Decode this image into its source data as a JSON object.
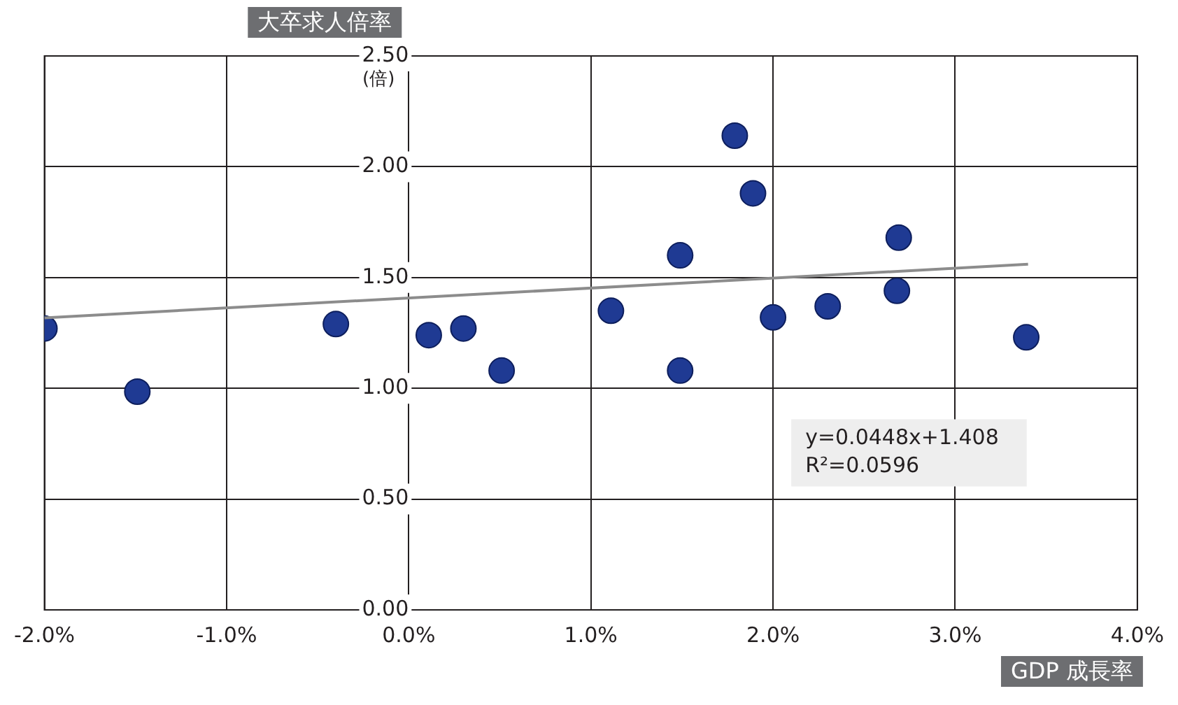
{
  "chart_data": {
    "type": "scatter",
    "xlabel": "GDP 成長率",
    "ylabel": "大卒求人倍率",
    "annotations": [
      "(倍)",
      "y=0.0448x+1.408",
      "R²=0.0596"
    ],
    "x": [
      -2.0,
      -1.49,
      -0.4,
      0.11,
      0.3,
      0.51,
      1.11,
      1.49,
      1.49,
      1.79,
      1.89,
      2.0,
      2.3,
      2.69,
      2.68,
      3.39
    ],
    "series": [
      {
        "color": "#1f3a93",
        "values": [
          1.27,
          0.985,
          1.29,
          1.24,
          1.27,
          1.08,
          1.35,
          1.6,
          1.08,
          2.14,
          1.88,
          1.32,
          1.37,
          1.68,
          1.44,
          1.23
        ]
      },
      {
        "type": "line",
        "marker": "none",
        "color": "#8c8c8c",
        "x": [
          -2.0,
          3.4
        ],
        "values": [
          1.318,
          1.56
        ]
      }
    ],
    "xlim": [
      -2,
      4
    ],
    "xticks": [
      {
        "value": -2,
        "label": "-2.0%"
      },
      {
        "value": -1,
        "label": "-1.0%"
      },
      {
        "value": 0,
        "label": "0.0%"
      },
      {
        "value": 1,
        "label": "1.0%"
      },
      {
        "value": 2,
        "label": "2.0%"
      },
      {
        "value": 3,
        "label": "3.0%"
      },
      {
        "value": 4,
        "label": "4.0%"
      }
    ],
    "ylim": [
      0,
      2.5
    ],
    "yticks": [
      {
        "value": 0,
        "label": "0.00"
      },
      {
        "value": 0.5,
        "label": "0.50"
      },
      {
        "value": 1,
        "label": "1.00"
      },
      {
        "value": 1.5,
        "label": "1.50"
      },
      {
        "value": 2,
        "label": "2.00"
      },
      {
        "value": 2.5,
        "label": "2.50"
      }
    ],
    "grid": true,
    "legend": false,
    "marker": "circle"
  }
}
